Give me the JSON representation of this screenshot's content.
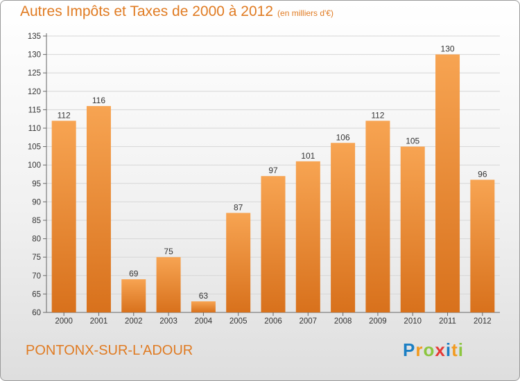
{
  "header": {
    "title": "Autres Impôts et Taxes de 2000 à 2012",
    "subtitle": "(en milliers d'€)"
  },
  "footer": {
    "town": "PONTONX-SUR-L'ADOUR",
    "logo_letters": [
      "P",
      "r",
      "o",
      "x",
      "i",
      "t",
      "i"
    ],
    "logo_colors": [
      "#1b7fc4",
      "#f29a1e",
      "#8cc63f",
      "#e53935",
      "#1b7fc4",
      "#f29a1e",
      "#8cc63f"
    ]
  },
  "colors": {
    "bar_top": "#f7a452",
    "bar_bottom": "#d8711c",
    "text_accent": "#e07b22"
  },
  "chart_data": {
    "type": "bar",
    "categories": [
      "2000",
      "2001",
      "2002",
      "2003",
      "2004",
      "2005",
      "2006",
      "2007",
      "2008",
      "2009",
      "2010",
      "2011",
      "2012"
    ],
    "values": [
      112,
      116,
      69,
      75,
      63,
      87,
      97,
      101,
      106,
      112,
      105,
      130,
      96
    ],
    "yticks": [
      "60",
      "65",
      "70",
      "75",
      "80",
      "85",
      "90",
      "95",
      "100",
      "105",
      "110",
      "115",
      "120",
      "125",
      "130",
      "135"
    ],
    "ylim": [
      60,
      135
    ],
    "grid": true
  }
}
